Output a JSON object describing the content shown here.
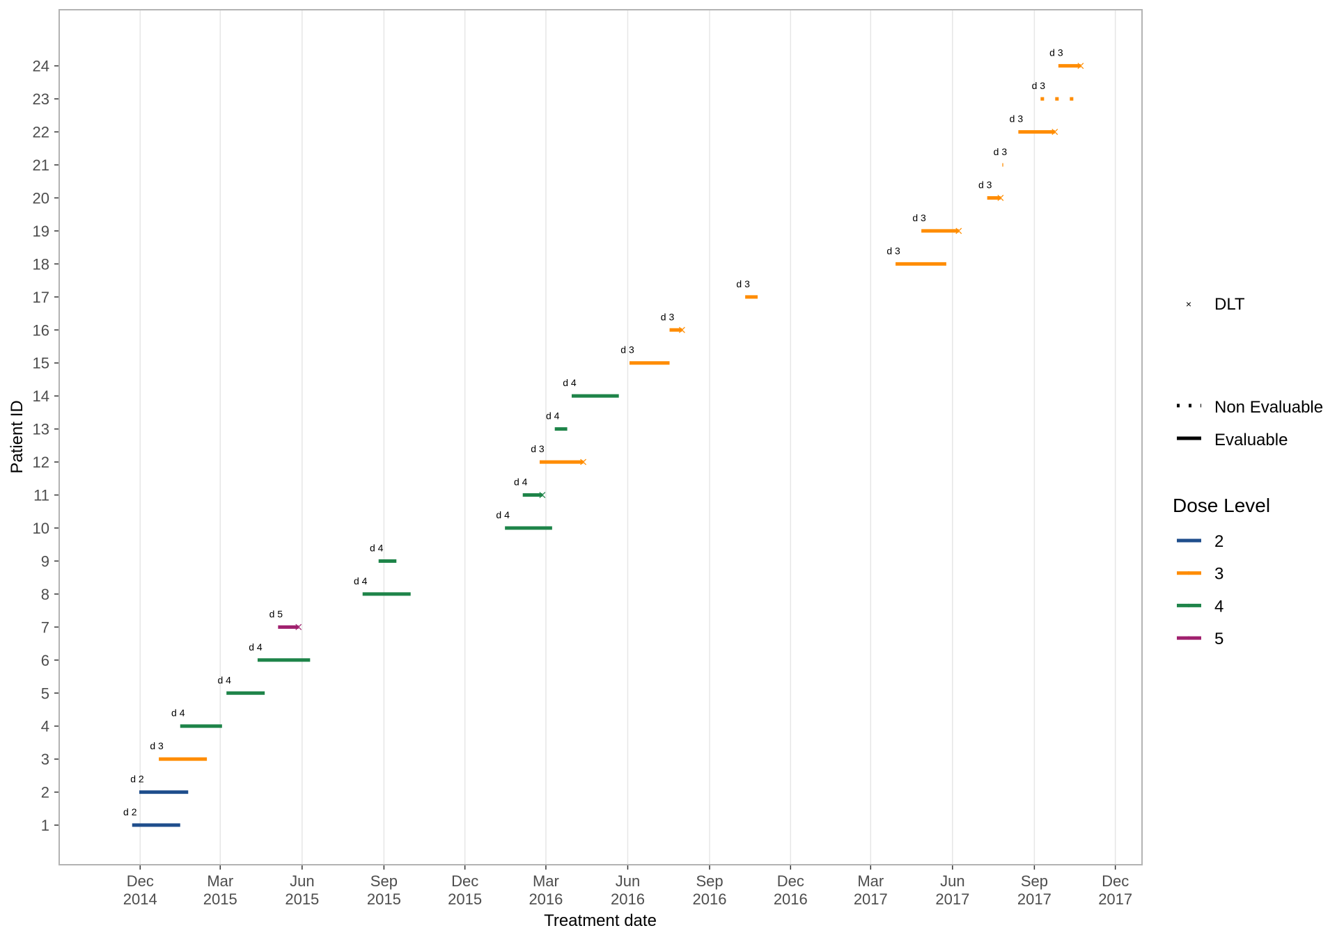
{
  "chart_data": {
    "type": "gantt",
    "xlabel": "Treatment date",
    "ylabel": "Patient ID",
    "xlim": [
      "2014-09-01",
      "2017-12-31"
    ],
    "ylim": [
      -0.2,
      25.7
    ],
    "grid": {
      "major_x": true,
      "major_y": false
    },
    "x_ticks": [
      {
        "date": "2014-12-01",
        "month": "Dec",
        "year": "2014"
      },
      {
        "date": "2015-03-01",
        "month": "Mar",
        "year": "2015"
      },
      {
        "date": "2015-06-01",
        "month": "Jun",
        "year": "2015"
      },
      {
        "date": "2015-09-01",
        "month": "Sep",
        "year": "2015"
      },
      {
        "date": "2015-12-01",
        "month": "Dec",
        "year": "2015"
      },
      {
        "date": "2016-03-01",
        "month": "Mar",
        "year": "2016"
      },
      {
        "date": "2016-06-01",
        "month": "Jun",
        "year": "2016"
      },
      {
        "date": "2016-09-01",
        "month": "Sep",
        "year": "2016"
      },
      {
        "date": "2016-12-01",
        "month": "Dec",
        "year": "2016"
      },
      {
        "date": "2017-03-01",
        "month": "Mar",
        "year": "2017"
      },
      {
        "date": "2017-06-01",
        "month": "Jun",
        "year": "2017"
      },
      {
        "date": "2017-09-01",
        "month": "Sep",
        "year": "2017"
      },
      {
        "date": "2017-12-01",
        "month": "Dec",
        "year": "2017"
      }
    ],
    "y_ticks": [
      "1",
      "2",
      "3",
      "4",
      "5",
      "6",
      "7",
      "8",
      "9",
      "10",
      "11",
      "12",
      "13",
      "14",
      "15",
      "16",
      "17",
      "18",
      "19",
      "20",
      "21",
      "22",
      "23",
      "24"
    ],
    "dose_colors": {
      "2": "#1f4e8c",
      "3": "#ff8c00",
      "4": "#1e8449",
      "5": "#a0206e"
    },
    "patients": [
      {
        "id": 1,
        "start": "2014-11-22",
        "end": "2015-01-15",
        "dose": "2",
        "label": "d 2",
        "evaluable": true,
        "dlt": false
      },
      {
        "id": 2,
        "start": "2014-11-30",
        "end": "2015-01-24",
        "dose": "2",
        "label": "d 2",
        "evaluable": true,
        "dlt": false
      },
      {
        "id": 3,
        "start": "2014-12-22",
        "end": "2015-02-14",
        "dose": "3",
        "label": "d 3",
        "evaluable": true,
        "dlt": false
      },
      {
        "id": 4,
        "start": "2015-01-15",
        "end": "2015-03-03",
        "dose": "4",
        "label": "d 4",
        "evaluable": true,
        "dlt": false
      },
      {
        "id": 5,
        "start": "2015-03-08",
        "end": "2015-04-20",
        "dose": "4",
        "label": "d 4",
        "evaluable": true,
        "dlt": false
      },
      {
        "id": 6,
        "start": "2015-04-12",
        "end": "2015-06-10",
        "dose": "4",
        "label": "d 4",
        "evaluable": true,
        "dlt": false
      },
      {
        "id": 7,
        "start": "2015-05-05",
        "end": "2015-05-28",
        "dose": "5",
        "label": "d 5",
        "evaluable": true,
        "dlt": true
      },
      {
        "id": 8,
        "start": "2015-08-08",
        "end": "2015-10-01",
        "dose": "4",
        "label": "d 4",
        "evaluable": true,
        "dlt": false
      },
      {
        "id": 9,
        "start": "2015-08-26",
        "end": "2015-09-15",
        "dose": "4",
        "label": "d 4",
        "evaluable": true,
        "dlt": false
      },
      {
        "id": 10,
        "start": "2016-01-15",
        "end": "2016-03-08",
        "dose": "4",
        "label": "d 4",
        "evaluable": true,
        "dlt": false
      },
      {
        "id": 11,
        "start": "2016-02-04",
        "end": "2016-02-26",
        "dose": "4",
        "label": "d 4",
        "evaluable": true,
        "dlt": true
      },
      {
        "id": 12,
        "start": "2016-02-23",
        "end": "2016-04-12",
        "dose": "3",
        "label": "d 3",
        "evaluable": true,
        "dlt": true
      },
      {
        "id": 13,
        "start": "2016-03-11",
        "end": "2016-03-25",
        "dose": "4",
        "label": "d 4",
        "evaluable": true,
        "dlt": false
      },
      {
        "id": 14,
        "start": "2016-03-30",
        "end": "2016-05-22",
        "dose": "4",
        "label": "d 4",
        "evaluable": true,
        "dlt": false
      },
      {
        "id": 15,
        "start": "2016-06-03",
        "end": "2016-07-18",
        "dose": "3",
        "label": "d 3",
        "evaluable": true,
        "dlt": false
      },
      {
        "id": 16,
        "start": "2016-07-18",
        "end": "2016-08-01",
        "dose": "3",
        "label": "d 3",
        "evaluable": true,
        "dlt": true
      },
      {
        "id": 17,
        "start": "2016-10-11",
        "end": "2016-10-25",
        "dose": "3",
        "label": "d 3",
        "evaluable": true,
        "dlt": false
      },
      {
        "id": 18,
        "start": "2017-03-29",
        "end": "2017-05-25",
        "dose": "3",
        "label": "d 3",
        "evaluable": true,
        "dlt": false
      },
      {
        "id": 19,
        "start": "2017-04-27",
        "end": "2017-06-08",
        "dose": "3",
        "label": "d 3",
        "evaluable": true,
        "dlt": true
      },
      {
        "id": 20,
        "start": "2017-07-10",
        "end": "2017-07-25",
        "dose": "3",
        "label": "d 3",
        "evaluable": true,
        "dlt": true
      },
      {
        "id": 21,
        "start": "2017-07-27",
        "end": "2017-07-28",
        "dose": "3",
        "label": "d 3",
        "evaluable": true,
        "dlt": false
      },
      {
        "id": 22,
        "start": "2017-08-14",
        "end": "2017-09-24",
        "dose": "3",
        "label": "d 3",
        "evaluable": true,
        "dlt": true
      },
      {
        "id": 23,
        "start": "2017-09-08",
        "end": "2017-10-27",
        "dose": "3",
        "label": "d 3",
        "evaluable": false,
        "dlt": false
      },
      {
        "id": 24,
        "start": "2017-09-28",
        "end": "2017-10-23",
        "dose": "3",
        "label": "d 3",
        "evaluable": true,
        "dlt": true
      }
    ],
    "legend": {
      "placement": "right",
      "dlt_label": "DLT",
      "non_evaluable_label": "Non Evaluable",
      "evaluable_label": "Evaluable",
      "dose_title": "Dose Level",
      "dose_entries": [
        "2",
        "3",
        "4",
        "5"
      ]
    }
  }
}
